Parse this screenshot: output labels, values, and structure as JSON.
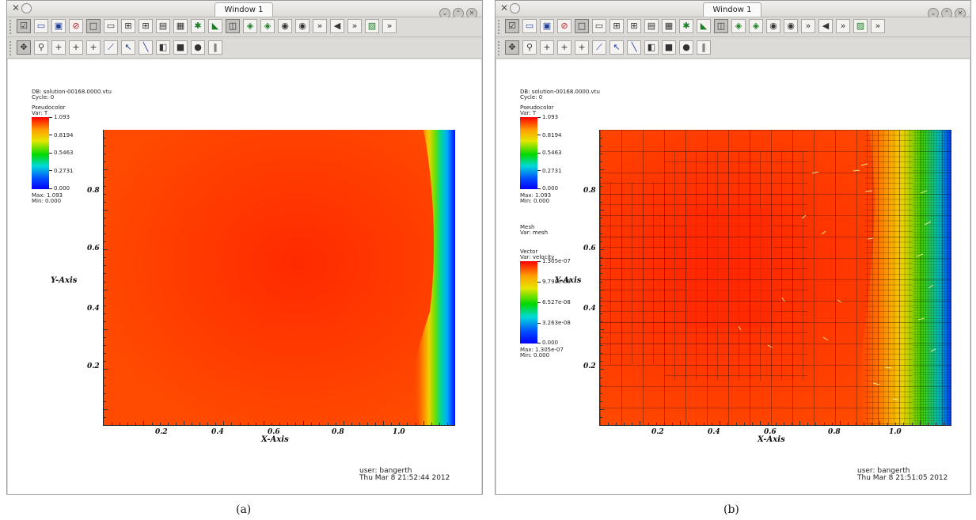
{
  "windows": [
    {
      "id": "a",
      "title": "Window 1",
      "db_text": "DB: solution-00168.0000.vtu",
      "cycle_text": "Cycle: 0",
      "legend1": {
        "title": "Pseudocolor",
        "var": "Var: T",
        "labels": [
          "1.093",
          "0.8194",
          "0.5463",
          "0.2731",
          "0.000"
        ],
        "max": "Max:  1.093",
        "min": "Min:  0.000"
      },
      "axes": {
        "xlabel": "X-Axis",
        "ylabel": "Y-Axis",
        "xticks": [
          "0.2",
          "0.4",
          "0.6",
          "0.8",
          "1.0"
        ],
        "yticks": [
          "0.8",
          "0.6",
          "0.4",
          "0.2"
        ]
      },
      "user": "user: bangerth",
      "date": "Thu Mar  8 21:52:44 2012",
      "caption": "(a)"
    },
    {
      "id": "b",
      "title": "Window 1",
      "db_text": "DB: solution-00168.0000.vtu",
      "cycle_text": "Cycle: 0",
      "legend1": {
        "title": "Pseudocolor",
        "var": "Var: T",
        "labels": [
          "1.093",
          "0.8194",
          "0.5463",
          "0.2731",
          "0.000"
        ],
        "max": "Max:  1.093",
        "min": "Min:  0.000"
      },
      "mesh": {
        "title": "Mesh",
        "var": "Var: mesh"
      },
      "legend2": {
        "title": "Vector",
        "var": "Var: velocity",
        "labels": [
          "1.305e-07",
          "9.790e-08",
          "6.527e-08",
          "3.263e-08",
          "0.000"
        ],
        "max": "Max:  1.305e-07",
        "min": "Min:  0.000"
      },
      "axes": {
        "xlabel": "X-Axis",
        "ylabel": "Y-Axis",
        "xticks": [
          "0.2",
          "0.4",
          "0.6",
          "0.8",
          "1.0"
        ],
        "yticks": [
          "0.8",
          "0.6",
          "0.4",
          "0.2"
        ]
      },
      "user": "user: bangerth",
      "date": "Thu Mar  8 21:51:05 2012",
      "caption": "(b)"
    }
  ],
  "toolbar_icons_row1": [
    "active-window-icon",
    "new-window-icon",
    "clone-window-icon",
    "delete-window-icon",
    "layout-1x1-icon",
    "layout-1x2-icon",
    "layout-2x2-icon",
    "layout-2x3-icon",
    "layout-2x4-icon",
    "layout-3x3-icon",
    "lock-view-icon",
    "lock-time-icon",
    "reset-view-icon",
    "camera-icon",
    "camera-icon",
    "camera-icon",
    "camera-icon",
    "more-icon",
    "animation-back-icon",
    "more-icon",
    "plot-icon",
    "more-icon"
  ],
  "toolbar_icons_row2": [
    "navigate-icon",
    "zoom-icon",
    "add-z-icon",
    "add-n-icon",
    "add-s-icon",
    "lineout-icon",
    "pick-icon",
    "line-tool-icon",
    "box-tool-icon",
    "plane-tool-icon",
    "sphere-tool-icon",
    "axis-array-icon"
  ]
}
